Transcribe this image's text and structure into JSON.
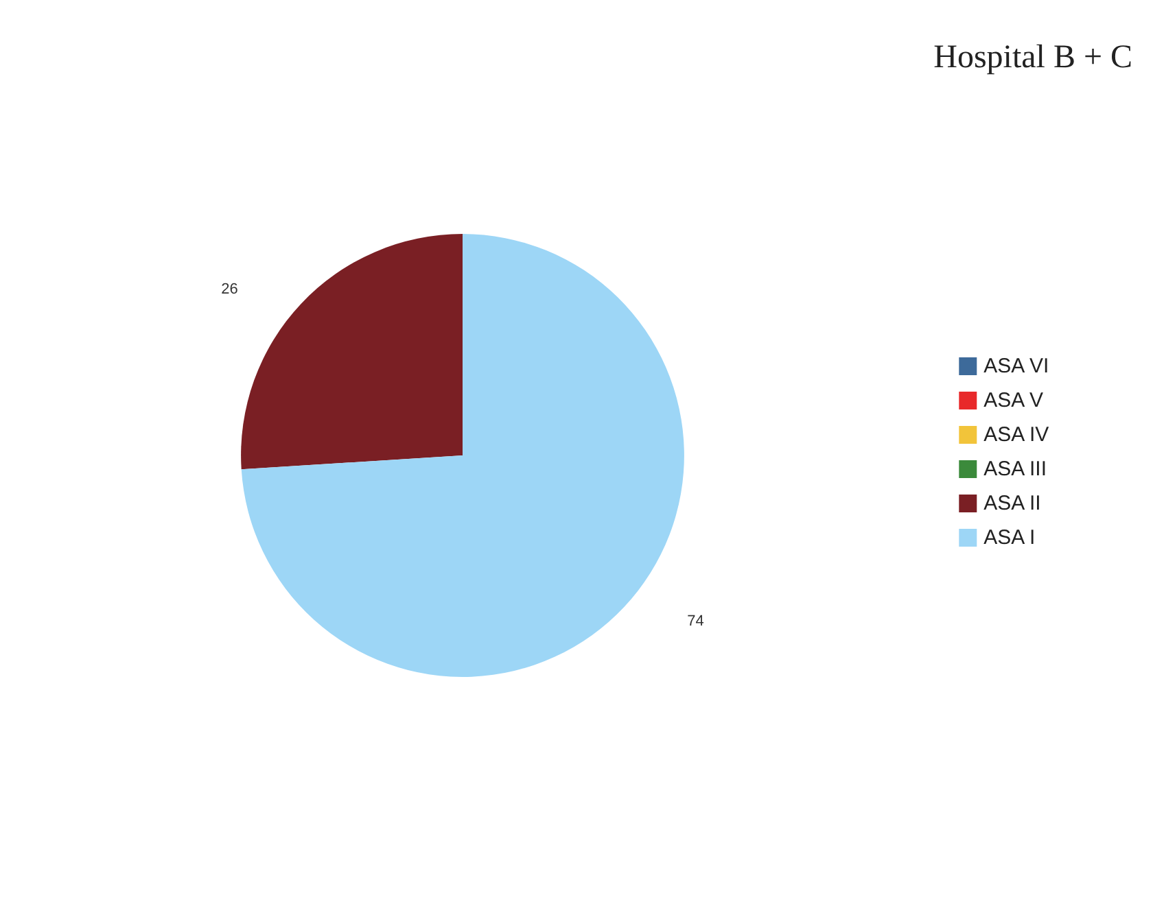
{
  "chart_data": {
    "type": "pie",
    "title": "Hospital B + C",
    "categories": [
      "ASA VI",
      "ASA V",
      "ASA IV",
      "ASA III",
      "ASA II",
      "ASA I"
    ],
    "values": [
      0,
      0,
      0,
      0,
      26,
      74
    ],
    "value_labels": [
      null,
      null,
      null,
      null,
      "26",
      "74"
    ],
    "colors": [
      "#3d6a9a",
      "#e8292a",
      "#f2c43a",
      "#3b8a3b",
      "#7a1f24",
      "#9dd6f6"
    ],
    "legend": "right"
  }
}
